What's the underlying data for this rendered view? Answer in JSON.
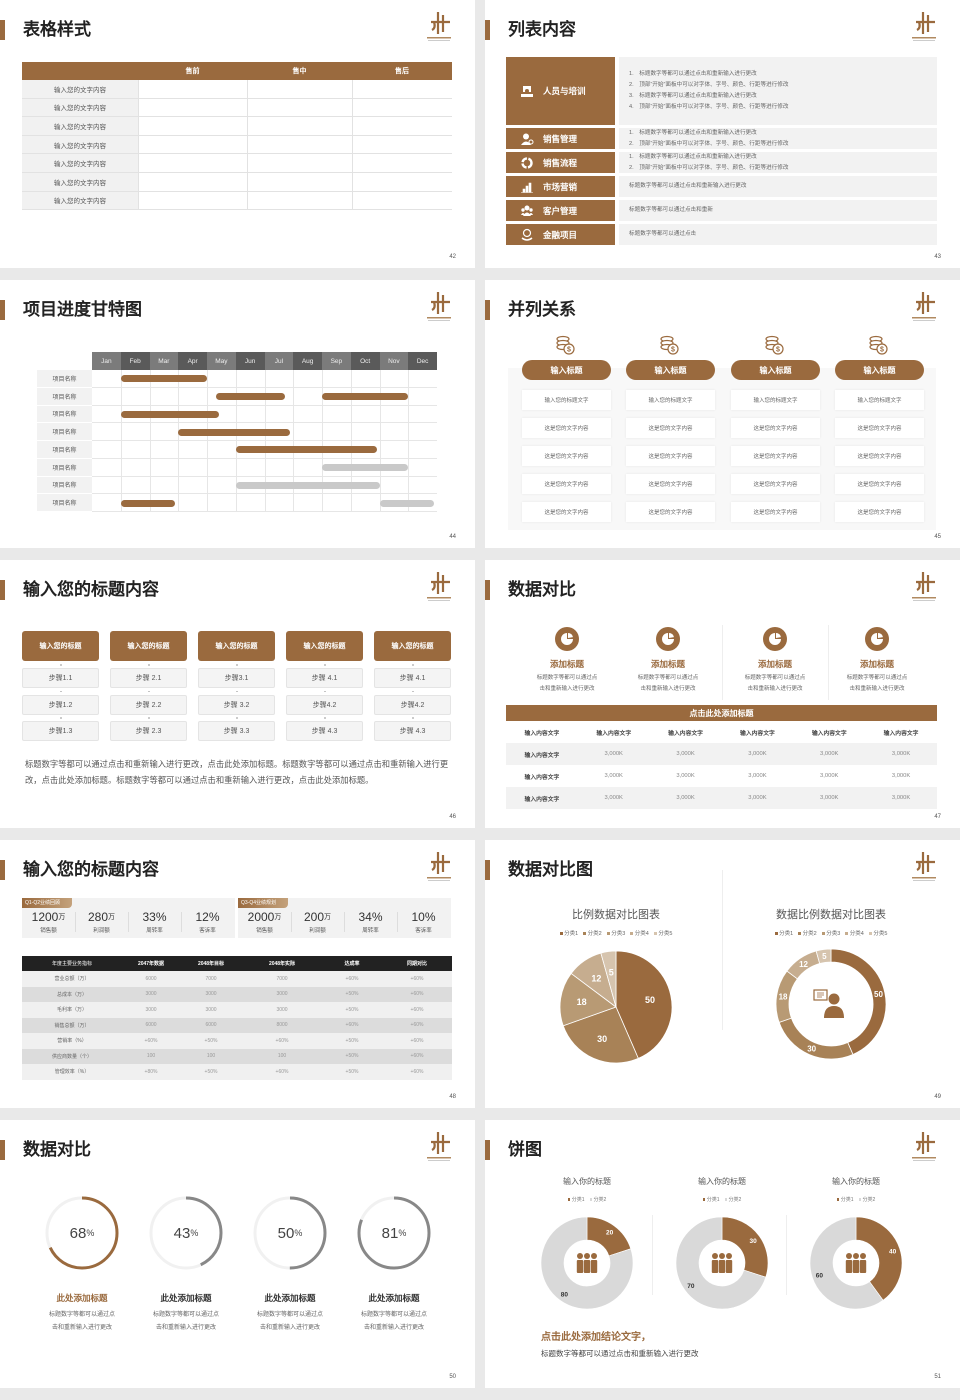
{
  "colors": {
    "brand": "#9a6a3e",
    "gray_bar": "#c9c9c9",
    "dark_header": "#222222",
    "page_bg": "#e9e9e9",
    "ring_gray": "#888888"
  },
  "slides": [
    {
      "kind": "table",
      "title": "表格样式",
      "page": "42",
      "headers": [
        "",
        "售前",
        "售中",
        "售后"
      ],
      "rows": [
        "输入您的文字内容",
        "输入您的文字内容",
        "输入您的文字内容",
        "输入您的文字内容",
        "输入您的文字内容",
        "输入您的文字内容",
        "输入您的文字内容"
      ]
    },
    {
      "kind": "list",
      "title": "列表内容",
      "page": "43",
      "items": [
        {
          "label": "人员与培训",
          "icon": "training-icon",
          "lines": [
            "1.　标题数字等都可以通过点击和重新输入进行更改",
            "2.　顶部“开始”面板中可以对字体、字号、颜色、行距等进行修改",
            "3.　标题数字等都可以通过点击和重新输入进行更改",
            "4.　顶部“开始”面板中可以对字体、字号、颜色、行距等进行修改"
          ]
        },
        {
          "label": "销售管理",
          "icon": "sales-manager-icon",
          "lines": [
            "1.　标题数字等都可以通过点击和重新输入进行更改",
            "2.　顶部“开始”面板中可以对字体、字号、颜色、行距等进行修改"
          ]
        },
        {
          "label": "销售流程",
          "icon": "cycle-icon",
          "lines": [
            "1.　标题数字等都可以通过点击和重新输入进行更改",
            "2.　顶部“开始”面板中可以对字体、字号、颜色、行距等进行修改"
          ]
        },
        {
          "label": "市场营销",
          "icon": "bar-chart-icon",
          "lines": [
            "标题数字等都可以通过点击和重新输入进行更改"
          ]
        },
        {
          "label": "客户管理",
          "icon": "users-icon",
          "lines": [
            "标题数字等都可以通过点击和重新"
          ]
        },
        {
          "label": "金融项目",
          "icon": "finance-icon",
          "lines": [
            "标题数字等都可以通过点击"
          ]
        }
      ]
    },
    {
      "kind": "gantt",
      "title": "项目进度甘特图",
      "page": "44",
      "chart": 0
    },
    {
      "kind": "parallel",
      "title": "并列关系",
      "page": "45",
      "icon": "coins-icon",
      "columns": [
        {
          "title": "输入标题",
          "cells": [
            "输入您的标题文字",
            "这是您的文字内容",
            "这是您的文字内容",
            "这是您的文字内容",
            "这是您的文字内容"
          ]
        },
        {
          "title": "输入标题",
          "cells": [
            "输入您的标题文字",
            "这是您的文字内容",
            "这是您的文字内容",
            "这是您的文字内容",
            "这是您的文字内容"
          ]
        },
        {
          "title": "输入标题",
          "cells": [
            "输入您的标题文字",
            "这是您的文字内容",
            "这是您的文字内容",
            "这是您的文字内容",
            "这是您的文字内容"
          ]
        },
        {
          "title": "输入标题",
          "cells": [
            "输入您的标题文字",
            "这是您的文字内容",
            "这是您的文字内容",
            "这是您的文字内容",
            "这是您的文字内容"
          ]
        }
      ]
    },
    {
      "kind": "steps",
      "title": "输入您的标题内容",
      "page": "46",
      "columns": [
        {
          "title": "输入您的标题",
          "steps": [
            "步骤1.1",
            "步骤1.2",
            "步骤1.3"
          ]
        },
        {
          "title": "输入您的标题",
          "steps": [
            "步骤 2.1",
            "步骤 2.2",
            "步骤 2.3"
          ]
        },
        {
          "title": "输入您的标题",
          "steps": [
            "步骤3.1",
            "步骤 3.2",
            "步骤 3.3"
          ]
        },
        {
          "title": "输入您的标题",
          "steps": [
            "步骤 4.1",
            "步骤4.2",
            "步骤 4.3"
          ]
        },
        {
          "title": "输入您的标题",
          "steps": [
            "步骤 4.1",
            "步骤4.2",
            "步骤 4.3"
          ]
        }
      ],
      "paragraph": "标题数字等都可以通过点击和重新输入进行更改，点击此处添加标题。标题数字等都可以通过点击和重新输入进行更改，点击此处添加标题。标题数字等都可以通过点击和重新输入进行更改，点击此处添加标题。"
    },
    {
      "kind": "compare",
      "title": "数据对比",
      "page": "47",
      "features": [
        {
          "title": "添加标题",
          "desc": [
            "标题数字等都可以通过点",
            "击和重新输入进行更改"
          ]
        },
        {
          "title": "添加标题",
          "desc": [
            "标题数字等都可以通过点",
            "击和重新输入进行更改"
          ]
        },
        {
          "title": "添加标题",
          "desc": [
            "标题数字等都可以通过点",
            "击和重新输入进行更改"
          ]
        },
        {
          "title": "添加标题",
          "desc": [
            "标题数字等都可以通过点",
            "击和重新输入进行更改"
          ]
        }
      ],
      "banner": "点击此处添加标题",
      "table": {
        "header": [
          "输入内容文字",
          "输入内容文字",
          "输入内容文字",
          "输入内容文字",
          "输入内容文字",
          "输入内容文字"
        ],
        "rows": [
          [
            "输入内容文字",
            "3,000K",
            "3,000K",
            "3,000K",
            "3,000K",
            "3,000K"
          ],
          [
            "输入内容文字",
            "3,000K",
            "3,000K",
            "3,000K",
            "3,000K",
            "3,000K"
          ],
          [
            "输入内容文字",
            "3,000K",
            "3,000K",
            "3,000K",
            "3,000K",
            "3,000K"
          ]
        ]
      }
    },
    {
      "kind": "kpi",
      "title": "输入您的标题内容",
      "page": "48",
      "groups": [
        {
          "tag": "Q1-Q2业绩回顾",
          "metrics": [
            {
              "value": "1200",
              "unit": "万",
              "label": "销售额"
            },
            {
              "value": "280",
              "unit": "万",
              "label": "利润额"
            },
            {
              "value": "33%",
              "unit": "",
              "label": "周转率"
            },
            {
              "value": "12%",
              "unit": "",
              "label": "客诉率"
            }
          ]
        },
        {
          "tag": "Q3-Q4业绩规划",
          "metrics": [
            {
              "value": "2000",
              "unit": "万",
              "label": "销售额"
            },
            {
              "value": "200",
              "unit": "万",
              "label": "利润额"
            },
            {
              "value": "34%",
              "unit": "",
              "label": "周转率"
            },
            {
              "value": "10%",
              "unit": "",
              "label": "客诉率"
            }
          ]
        }
      ],
      "table": {
        "header": [
          "年度主要业务指标",
          "2047年数据",
          "2048年目标",
          "2048年实际",
          "达成率",
          "同期对比"
        ],
        "rows": [
          [
            "营业总额（万）",
            "6000",
            "7000",
            "7000",
            "+60%",
            "+60%"
          ],
          [
            "总成本（万）",
            "3000",
            "3000",
            "3000",
            "+50%",
            "+60%"
          ],
          [
            "毛利率（万）",
            "3000",
            "3000",
            "3000",
            "+50%",
            "+60%"
          ],
          [
            "销售总额（万）",
            "6000",
            "6000",
            "8000",
            "+60%",
            "+60%"
          ],
          [
            "营销率（%）",
            "+60%",
            "+50%",
            "+60%",
            "+50%",
            "+60%"
          ],
          [
            "供应商数量（个）",
            "100",
            "100",
            "100",
            "+50%",
            "+60%"
          ],
          [
            "管理效率（%）",
            "+80%",
            "+50%",
            "+60%",
            "+50%",
            "+60%"
          ]
        ]
      }
    },
    {
      "kind": "pies",
      "title": "数据对比图",
      "page": "49",
      "charts": [
        1,
        2
      ]
    },
    {
      "kind": "rings",
      "title": "数据对比",
      "page": "50",
      "rings": [
        {
          "value": 68,
          "unit": "%",
          "title": "此处添加标题",
          "desc": [
            "标题数字等都可以通过点",
            "击和重新输入进行更改"
          ],
          "color": "#9a6a3e"
        },
        {
          "value": 43,
          "unit": "%",
          "title": "此处添加标题",
          "desc": [
            "标题数字等都可以通过点",
            "击和重新输入进行更改"
          ],
          "color": "#888888"
        },
        {
          "value": 50,
          "unit": "%",
          "title": "此处添加标题",
          "desc": [
            "标题数字等都可以通过点",
            "击和重新输入进行更改"
          ],
          "color": "#888888"
        },
        {
          "value": 81,
          "unit": "%",
          "title": "此处添加标题",
          "desc": [
            "标题数字等都可以通过点",
            "击和重新输入进行更改"
          ],
          "color": "#888888"
        }
      ]
    },
    {
      "kind": "donuts",
      "title": "饼图",
      "page": "51",
      "charts": [
        3,
        4,
        5
      ],
      "conclusion_title": "点击此处添加结论文字，",
      "conclusion_text": "标题数字等都可以通过点击和重新输入进行更改"
    }
  ],
  "chart_data": [
    {
      "type": "bar",
      "orientation": "horizontal-range",
      "x_ticks": [
        "Jan",
        "Feb",
        "Mar",
        "Apr",
        "May",
        "Jun",
        "Jul",
        "Aug",
        "Sep",
        "Oct",
        "Nov",
        "Dec"
      ],
      "categories": [
        "项目名称",
        "项目名称",
        "项目名称",
        "项目名称",
        "项目名称",
        "项目名称",
        "项目名称",
        "项目名称"
      ],
      "tasks": [
        {
          "row": 0,
          "start": 2.0,
          "end": 5.0,
          "color": "#9a6a3e"
        },
        {
          "row": 1,
          "start": 5.3,
          "end": 7.7,
          "color": "#9a6a3e"
        },
        {
          "row": 1,
          "start": 9.0,
          "end": 12.0,
          "color": "#9a6a3e"
        },
        {
          "row": 2,
          "start": 2.0,
          "end": 5.4,
          "color": "#9a6a3e"
        },
        {
          "row": 3,
          "start": 4.0,
          "end": 7.9,
          "color": "#9a6a3e"
        },
        {
          "row": 4,
          "start": 6.0,
          "end": 10.9,
          "color": "#9a6a3e"
        },
        {
          "row": 5,
          "start": 9.0,
          "end": 12.0,
          "color": "#c9c9c9"
        },
        {
          "row": 6,
          "start": 6.0,
          "end": 11.0,
          "color": "#c9c9c9"
        },
        {
          "row": 7,
          "start": 2.0,
          "end": 3.9,
          "color": "#9a6a3e"
        },
        {
          "row": 7,
          "start": 11.0,
          "end": 12.9,
          "color": "#c9c9c9"
        }
      ]
    },
    {
      "type": "pie",
      "title": "比例数据对比图表",
      "legend_position": "top",
      "labels": [
        "分类1",
        "分类2",
        "分类3",
        "分类4",
        "分类5"
      ],
      "values": [
        50,
        30,
        18,
        12,
        5
      ],
      "colors": [
        "#9a6a3e",
        "#a88257",
        "#b89a74",
        "#c6ad8f",
        "#d6c4ae"
      ]
    },
    {
      "type": "pie",
      "donut": true,
      "title": "数据比例数据对比图表",
      "legend_position": "top",
      "labels": [
        "分类1",
        "分类2",
        "分类3",
        "分类4",
        "分类5"
      ],
      "values": [
        50,
        30,
        18,
        12,
        5
      ],
      "colors": [
        "#9a6a3e",
        "#a88257",
        "#b89a74",
        "#c6ad8f",
        "#d6c4ae"
      ],
      "center_icon": "consultant-icon"
    },
    {
      "type": "pie",
      "donut": true,
      "title": "输入你的标题",
      "legend_position": "top",
      "labels": [
        "分类1",
        "分类2"
      ],
      "values": [
        20,
        80
      ],
      "colors": [
        "#9a6a3e",
        "#d9d9d9"
      ],
      "center_icon": "team-icon"
    },
    {
      "type": "pie",
      "donut": true,
      "title": "输入你的标题",
      "legend_position": "top",
      "labels": [
        "分类1",
        "分类2"
      ],
      "values": [
        30,
        70
      ],
      "colors": [
        "#9a6a3e",
        "#d9d9d9"
      ],
      "center_icon": "team-icon"
    },
    {
      "type": "pie",
      "donut": true,
      "title": "输入你的标题",
      "legend_position": "top",
      "labels": [
        "分类1",
        "分类2"
      ],
      "values": [
        40,
        60
      ],
      "colors": [
        "#9a6a3e",
        "#d9d9d9"
      ],
      "center_icon": "team-icon"
    }
  ]
}
